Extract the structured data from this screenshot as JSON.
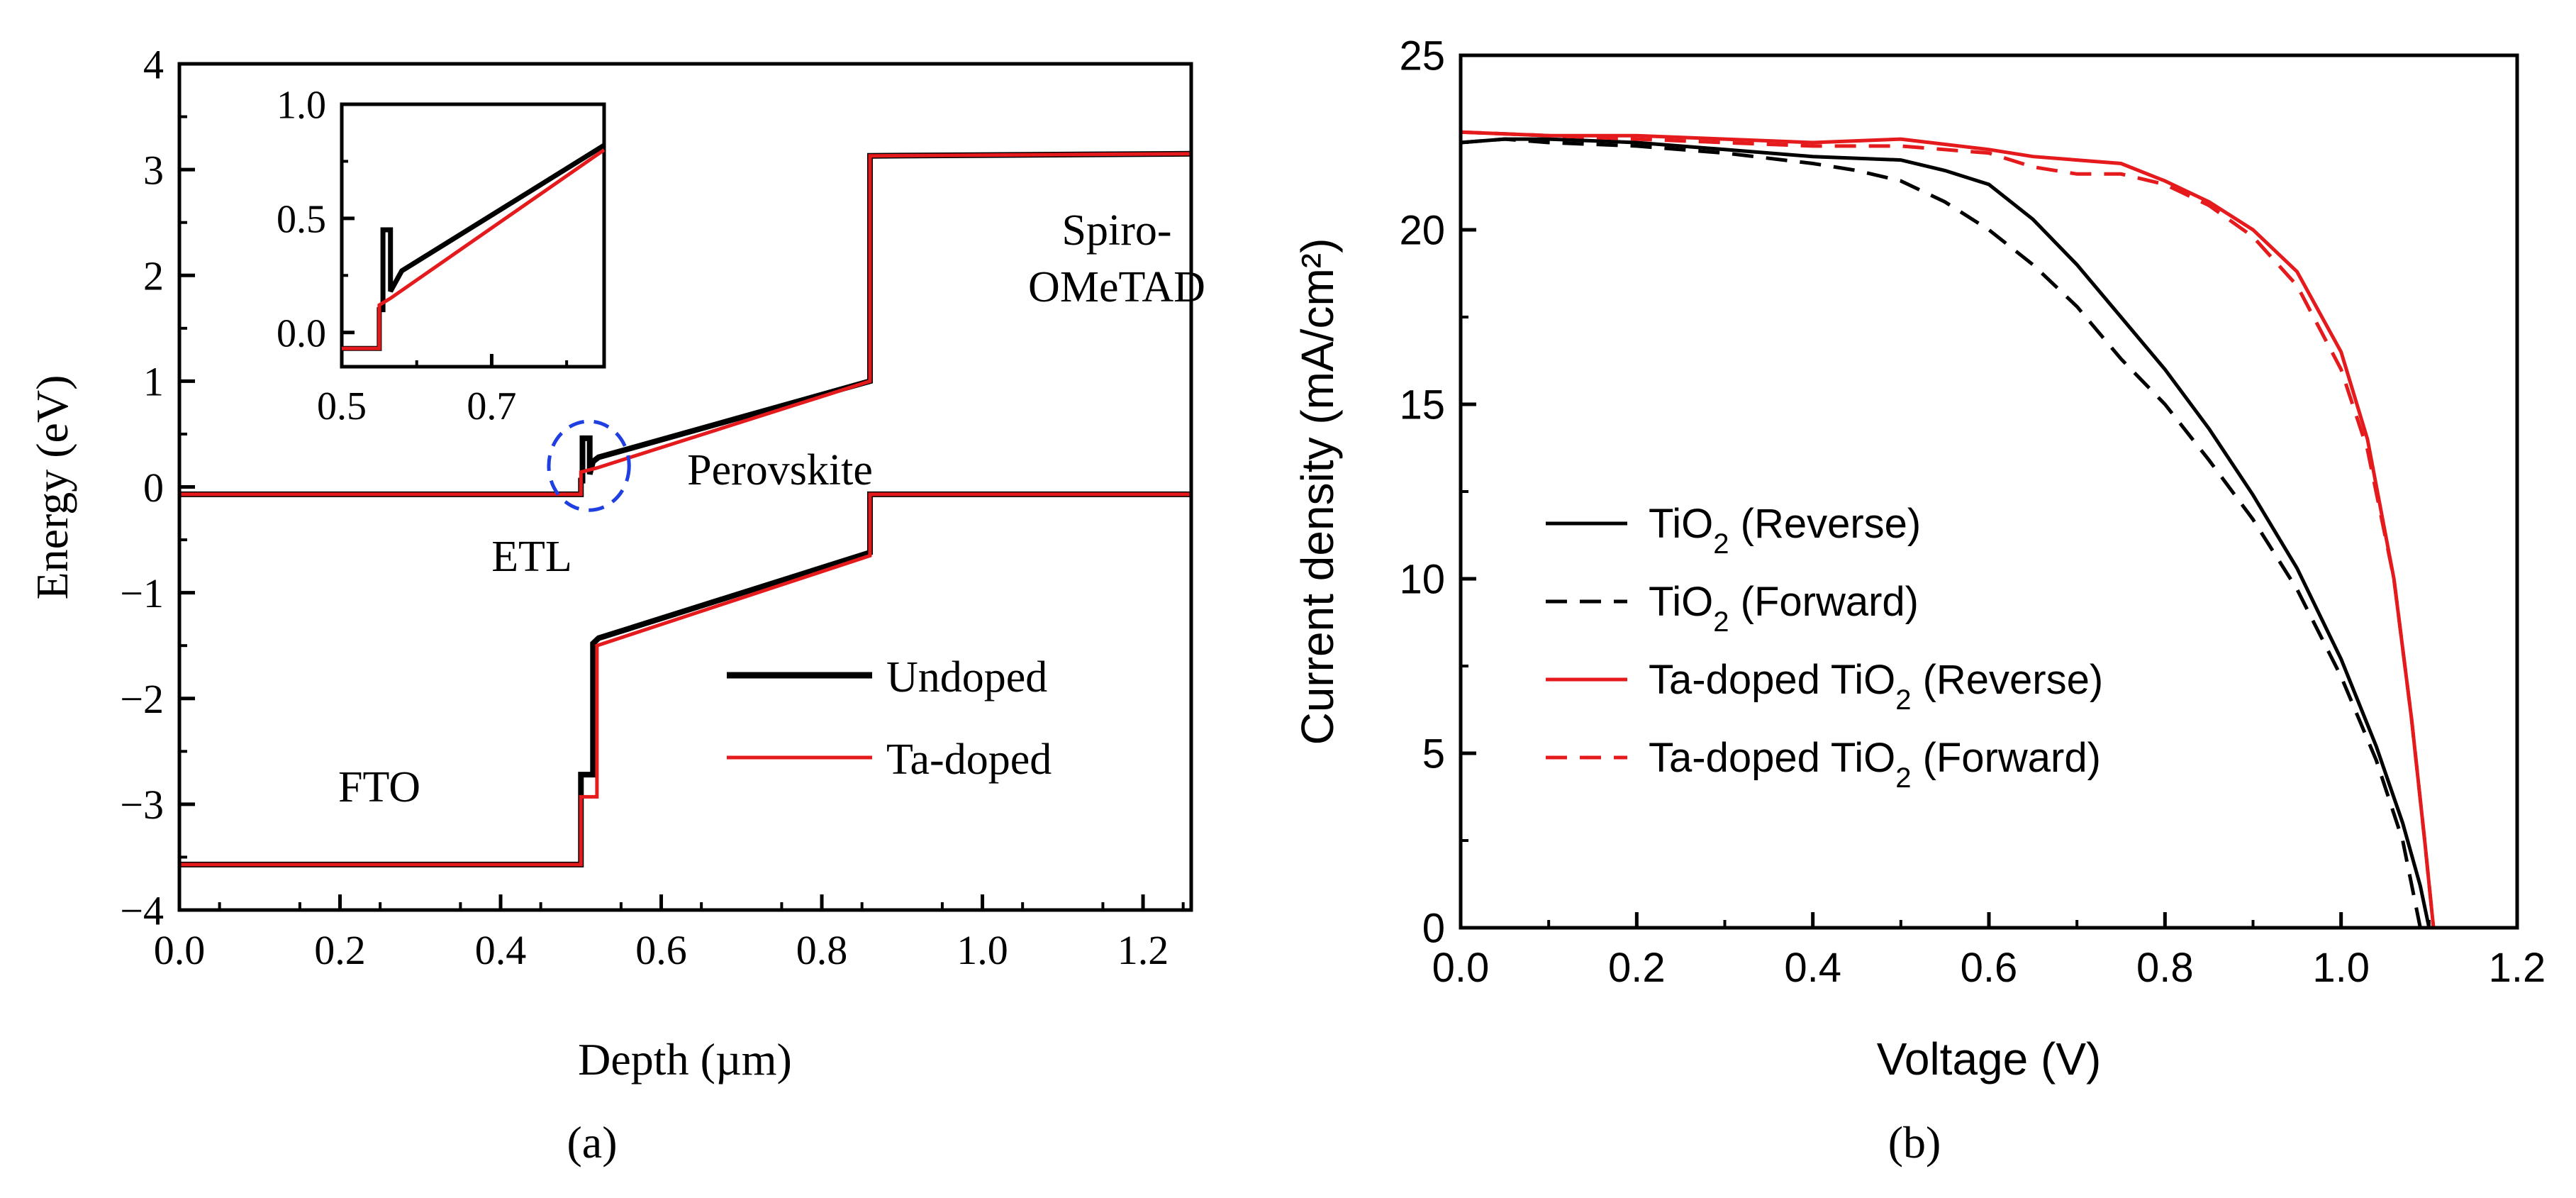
{
  "colors": {
    "undoped": "#000000",
    "tadoped": "#e41a1c",
    "highlight": "#1f3fe0",
    "axis": "#000000"
  },
  "chart_data": [
    {
      "type": "line",
      "panel_label": "(a)",
      "xlabel": "Depth (µm)",
      "ylabel": "Energy (eV)",
      "xlim": [
        0.0,
        1.26
      ],
      "ylim": [
        -4,
        4
      ],
      "x_ticks": [
        "0.0",
        "0.2",
        "0.4",
        "0.6",
        "0.8",
        "1.0",
        "1.2"
      ],
      "x_tick_values": [
        0.0,
        0.2,
        0.4,
        0.6,
        0.8,
        1.0,
        1.2
      ],
      "y_ticks": [
        "−4",
        "−3",
        "−2",
        "−1",
        "0",
        "1",
        "2",
        "3",
        "4"
      ],
      "y_tick_values": [
        -4,
        -3,
        -2,
        -1,
        0,
        1,
        2,
        3,
        4
      ],
      "legend": [
        {
          "label": "Undoped",
          "color": "#000000",
          "style": "solid"
        },
        {
          "label": "Ta-doped",
          "color": "#e41a1c",
          "style": "solid"
        }
      ],
      "annotations": [
        {
          "text": "Spiro-",
          "x": 1.13,
          "y": 2.6
        },
        {
          "text": "OMeTAD",
          "x": 1.13,
          "y": 1.9
        },
        {
          "text": "Perovskite",
          "x": 0.7,
          "y": 0.07
        },
        {
          "text": "ETL",
          "x": 0.44,
          "y": -0.8
        },
        {
          "text": "FTO",
          "x": 0.25,
          "y": -2.85
        }
      ],
      "highlight_ellipse": {
        "cx": 0.51,
        "cy": 0.2,
        "rx": 0.05,
        "ry": 0.42
      },
      "series": [
        {
          "name": "Undoped CB",
          "color": "#000000",
          "x": [
            0,
            0.5,
            0.5,
            0.502,
            0.502,
            0.511,
            0.511,
            0.515,
            0.522,
            0.86,
            0.86,
            1.26
          ],
          "y": [
            -0.07,
            -0.07,
            0.06,
            0.06,
            0.46,
            0.46,
            0.12,
            0.24,
            0.28,
            1.0,
            3.13,
            3.15
          ]
        },
        {
          "name": "Ta-doped CB",
          "color": "#e41a1c",
          "x": [
            0,
            0.5,
            0.5,
            0.52,
            0.86,
            0.86,
            1.26
          ],
          "y": [
            -0.07,
            -0.07,
            0.14,
            0.18,
            1.0,
            3.13,
            3.15
          ]
        },
        {
          "name": "Undoped VB",
          "color": "#000000",
          "x": [
            0,
            0.5,
            0.5,
            0.515,
            0.515,
            0.522,
            0.86,
            0.86,
            1.26
          ],
          "y": [
            -3.57,
            -3.57,
            -2.72,
            -2.72,
            -1.48,
            -1.43,
            -0.62,
            -0.07,
            -0.07
          ]
        },
        {
          "name": "Ta-doped VB",
          "color": "#e41a1c",
          "x": [
            0,
            0.5,
            0.5,
            0.52,
            0.52,
            0.86,
            0.86,
            1.26
          ],
          "y": [
            -3.57,
            -3.57,
            -2.93,
            -2.93,
            -1.5,
            -0.65,
            -0.07,
            -0.07
          ]
        }
      ],
      "inset": {
        "xlim": [
          0.5,
          0.85
        ],
        "ylim": [
          -0.15,
          1.0
        ],
        "x_ticks": [
          "0.5",
          "0.7"
        ],
        "x_tick_values": [
          0.5,
          0.7
        ],
        "y_ticks": [
          "0.0",
          "0.5",
          "1.0"
        ],
        "y_tick_values": [
          0.0,
          0.5,
          1.0
        ],
        "series": [
          {
            "name": "Undoped",
            "color": "#000000",
            "x": [
              0.5,
              0.55,
              0.55,
              0.555,
              0.555,
              0.565,
              0.565,
              0.58,
              0.85
            ],
            "y": [
              -0.07,
              -0.07,
              0.1,
              0.1,
              0.45,
              0.45,
              0.18,
              0.27,
              0.82
            ]
          },
          {
            "name": "Ta-doped",
            "color": "#e41a1c",
            "x": [
              0.5,
              0.55,
              0.55,
              0.565,
              0.85
            ],
            "y": [
              -0.07,
              -0.07,
              0.12,
              0.15,
              0.8
            ]
          }
        ]
      }
    },
    {
      "type": "line",
      "panel_label": "(b)",
      "xlabel": "Voltage (V)",
      "ylabel": "Current density (mA/cm²)",
      "xlim": [
        0.0,
        1.2
      ],
      "ylim": [
        0,
        25
      ],
      "x_ticks": [
        "0.0",
        "0.2",
        "0.4",
        "0.6",
        "0.8",
        "1.0",
        "1.2"
      ],
      "x_tick_values": [
        0.0,
        0.2,
        0.4,
        0.6,
        0.8,
        1.0,
        1.2
      ],
      "y_ticks": [
        "0",
        "5",
        "10",
        "15",
        "20",
        "25"
      ],
      "y_tick_values": [
        0,
        5,
        10,
        15,
        20,
        25
      ],
      "legend": [
        {
          "label": "TiO",
          "sub": "2",
          "suffix": " (Reverse)",
          "color": "#000000",
          "style": "solid"
        },
        {
          "label": "TiO",
          "sub": "2",
          "suffix": " (Forward)",
          "color": "#000000",
          "style": "dashed"
        },
        {
          "label": "Ta-doped TiO",
          "sub": "2",
          "suffix": " (Reverse)",
          "color": "#e41a1c",
          "style": "solid"
        },
        {
          "label": "Ta-doped TiO",
          "sub": "2",
          "suffix": " (Forward)",
          "color": "#e41a1c",
          "style": "dashed"
        }
      ],
      "series": [
        {
          "name": "TiO2 (Reverse)",
          "color": "#000000",
          "style": "solid",
          "x": [
            0,
            0.05,
            0.1,
            0.2,
            0.3,
            0.4,
            0.5,
            0.55,
            0.6,
            0.65,
            0.7,
            0.75,
            0.8,
            0.85,
            0.9,
            0.95,
            1.0,
            1.04,
            1.07,
            1.09,
            1.1
          ],
          "y": [
            22.5,
            22.6,
            22.6,
            22.5,
            22.3,
            22.1,
            22.0,
            21.7,
            21.3,
            20.3,
            19.0,
            17.5,
            16.0,
            14.3,
            12.4,
            10.3,
            7.7,
            5.2,
            3.0,
            1.2,
            0.0
          ]
        },
        {
          "name": "TiO2 (Forward)",
          "color": "#000000",
          "style": "dashed",
          "x": [
            0,
            0.05,
            0.1,
            0.2,
            0.3,
            0.4,
            0.45,
            0.5,
            0.55,
            0.6,
            0.65,
            0.7,
            0.75,
            0.8,
            0.85,
            0.9,
            0.95,
            1.0,
            1.04,
            1.07,
            1.09
          ],
          "y": [
            22.5,
            22.6,
            22.5,
            22.4,
            22.2,
            21.9,
            21.7,
            21.4,
            20.8,
            20.0,
            19.0,
            17.8,
            16.3,
            15.0,
            13.4,
            11.7,
            9.7,
            7.2,
            4.8,
            2.5,
            0.0
          ]
        },
        {
          "name": "Ta-doped TiO2 (Reverse)",
          "color": "#e41a1c",
          "style": "solid",
          "x": [
            0,
            0.1,
            0.2,
            0.3,
            0.4,
            0.5,
            0.6,
            0.65,
            0.7,
            0.75,
            0.8,
            0.85,
            0.9,
            0.95,
            1.0,
            1.03,
            1.06,
            1.08,
            1.095,
            1.105
          ],
          "y": [
            22.8,
            22.7,
            22.7,
            22.6,
            22.5,
            22.6,
            22.3,
            22.1,
            22.0,
            21.9,
            21.4,
            20.8,
            20.0,
            18.8,
            16.5,
            14.0,
            10.0,
            6.0,
            2.5,
            0.0
          ]
        },
        {
          "name": "Ta-doped TiO2 (Forward)",
          "color": "#e41a1c",
          "style": "dashed",
          "x": [
            0,
            0.1,
            0.2,
            0.3,
            0.4,
            0.5,
            0.6,
            0.65,
            0.7,
            0.75,
            0.8,
            0.85,
            0.9,
            0.95,
            1.0,
            1.03,
            1.06,
            1.08,
            1.095,
            1.105
          ],
          "y": [
            22.8,
            22.7,
            22.6,
            22.5,
            22.4,
            22.4,
            22.2,
            21.8,
            21.6,
            21.6,
            21.3,
            20.7,
            19.8,
            18.4,
            16.0,
            13.7,
            10.0,
            6.0,
            2.5,
            0.0
          ]
        }
      ]
    }
  ]
}
